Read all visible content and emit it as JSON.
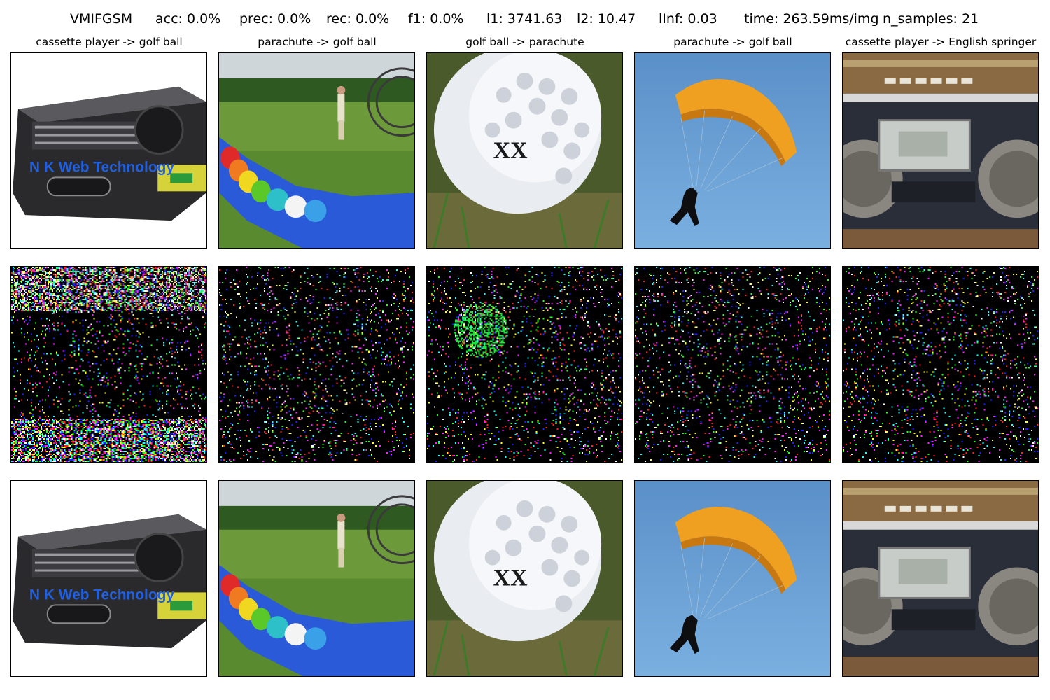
{
  "header": {
    "method": "VMIFGSM",
    "acc": "acc: 0.0%",
    "prec": "prec: 0.0%",
    "rec": "rec: 0.0%",
    "f1": "f1: 0.0%",
    "l1": "l1: 3741.63",
    "l2": "l2: 10.47",
    "linf": "lInf: 0.03",
    "time": "time: 263.59ms/img",
    "n_samples": "n_samples: 21"
  },
  "columns": [
    {
      "title": "cassette player -> golf ball",
      "image": "cassette-player"
    },
    {
      "title": "parachute -> golf ball",
      "image": "paraglider-field"
    },
    {
      "title": "golf ball -> parachute",
      "image": "golf-ball"
    },
    {
      "title": "parachute -> golf ball",
      "image": "parachutist"
    },
    {
      "title": "cassette player -> English springer",
      "image": "boombox"
    }
  ],
  "watermark": "N K Web Technology",
  "golfball_print": "XX",
  "rows": [
    "original",
    "perturbation",
    "adversarial"
  ]
}
